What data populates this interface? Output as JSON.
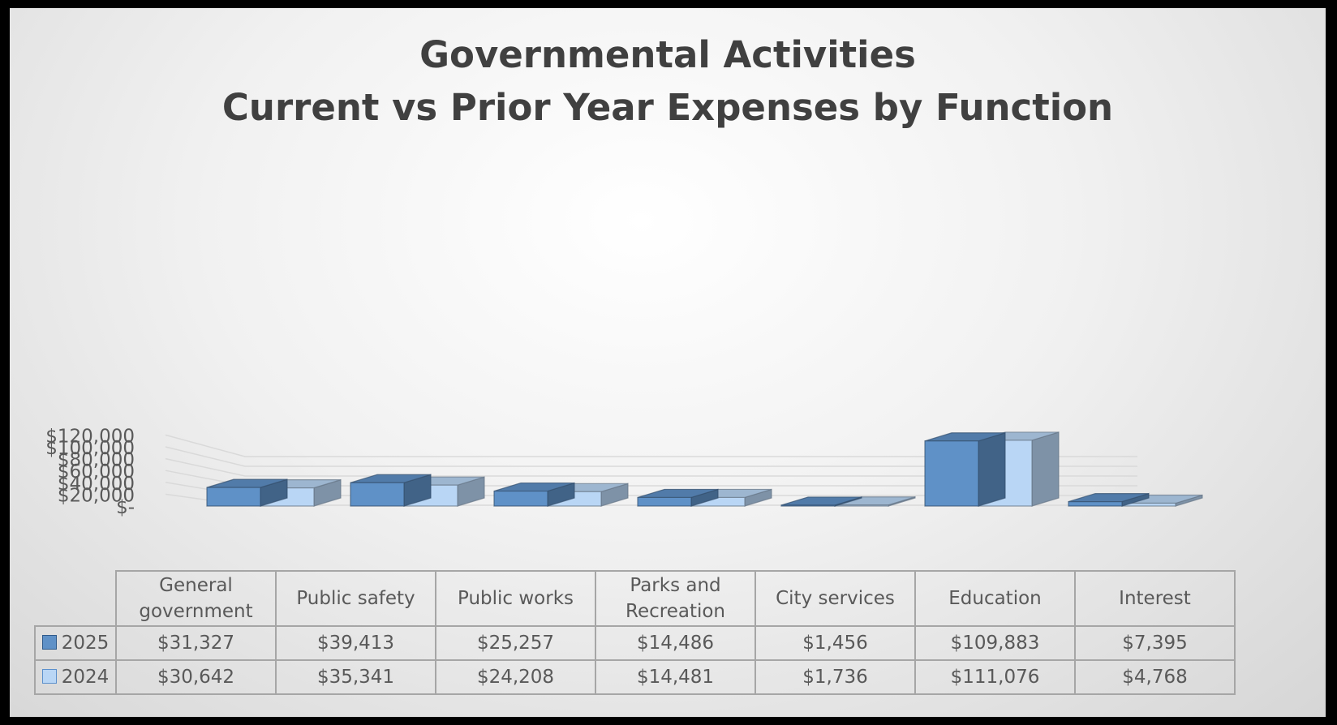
{
  "title_line1": "Governmental Activities",
  "title_line2": "Current vs Prior Year Expenses by Function",
  "chart_data": {
    "type": "bar",
    "title": "Governmental Activities Current vs Prior Year Expenses by Function",
    "categories": [
      "General government",
      "Public safety",
      "Public works",
      "Parks and Recreation",
      "City services",
      "Education",
      "Interest"
    ],
    "series": [
      {
        "name": "2025",
        "values": [
          31327,
          39413,
          25257,
          14486,
          1456,
          109883,
          7395
        ],
        "labels": [
          "$31,327",
          "$39,413",
          "$25,257",
          "$14,486",
          "$1,456",
          "$109,883",
          "$7,395"
        ],
        "color": "#5f91c7"
      },
      {
        "name": "2024",
        "values": [
          30642,
          35341,
          24208,
          14481,
          1736,
          111076,
          4768
        ],
        "labels": [
          "$30,642",
          "$35,341",
          "$24,208",
          "$14,481",
          "$1,736",
          "$111,076",
          "$4,768"
        ],
        "color": "#b9d6f5"
      }
    ],
    "yticks": [
      "$-",
      "$20,000",
      "$40,000",
      "$60,000",
      "$80,000",
      "$100,000",
      "$120,000"
    ],
    "ylim": [
      0,
      120000
    ],
    "grid": true,
    "legend": "data-table",
    "style": "3d-clustered-column"
  }
}
